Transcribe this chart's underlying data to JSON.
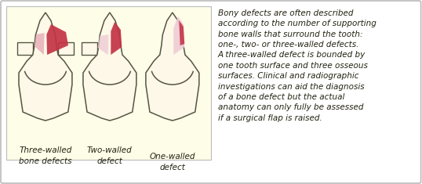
{
  "bg_color": "#ffffff",
  "border_color": "#bbbbbb",
  "tooth_fill": "#fdf8e8",
  "tooth_outline": "#555544",
  "defect_red": "#c43344",
  "defect_pink": "#e8b0b8",
  "defect_light_pink": "#eeccd4",
  "text_color": "#222211",
  "label1": "Three-walled\nbone defects",
  "label2": "Two-walled\ndefect",
  "label3": "One-walled\ndefect",
  "body_text": "Bony defects are often described\naccording to the number of supporting\nbone walls that surround the tooth:\none-, two- or three-walled defects.\nA three-walled defect is bounded by\none tooth surface and three osseous\nsurfaces. Clinical and radiographic\ninvestigations can aid the diagnosis\nof a bone defect but the actual\nanatomy can only fully be assessed\nif a surgical flap is raised.",
  "panel_bg": "#fdfde8",
  "fig_bg": "#ffffff"
}
